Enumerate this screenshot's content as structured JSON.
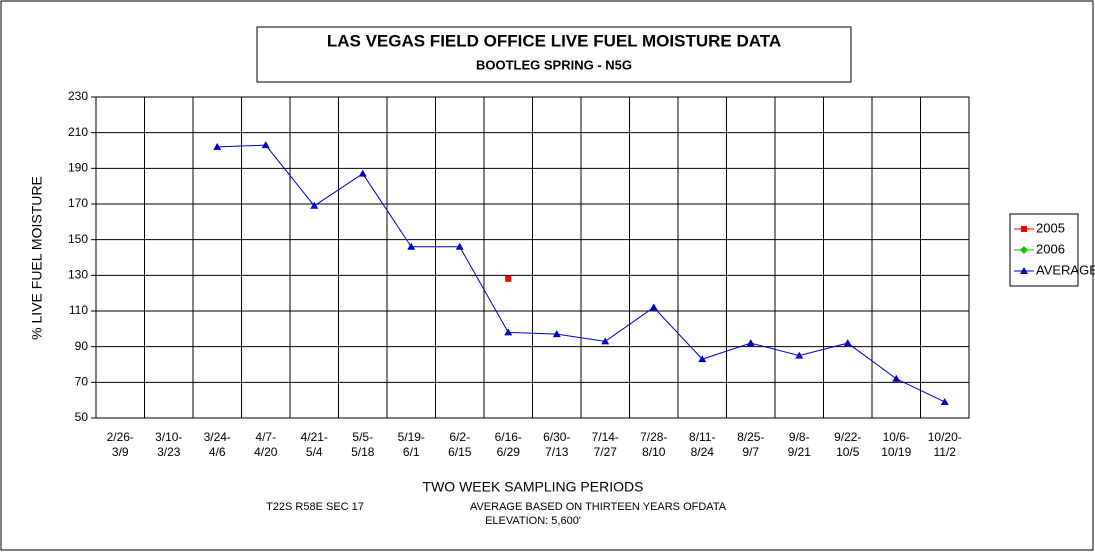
{
  "chart_data": {
    "type": "line",
    "title": "LAS VEGAS FIELD OFFICE  LIVE FUEL MOISTURE DATA",
    "subtitle": "BOOTLEG SPRING - N5G",
    "y_label": "% LIVE FUEL MOISTURE",
    "x_label": "TWO WEEK SAMPLING PERIODS",
    "notes": [
      "T22S R58E SEC 17",
      "AVERAGE BASED ON THIRTEEN YEARS OFDATA",
      "ELEVATION: 5,600'"
    ],
    "categories": [
      "2/26- 3/9",
      "3/10- 3/23",
      "3/24- 4/6",
      "4/7- 4/20",
      "4/21- 5/4",
      "5/5- 5/18",
      "5/19- 6/1",
      "6/2- 6/15",
      "6/16- 6/29",
      "6/30- 7/13",
      "7/14- 7/27",
      "7/28- 8/10",
      "8/11- 8/24",
      "8/25- 9/7",
      "9/8- 9/21",
      "9/22- 10/5",
      "10/6- 10/19",
      "10/20- 11/2"
    ],
    "series": [
      {
        "name": "2005",
        "color": "#ff0000",
        "marker": "square",
        "values": [
          null,
          null,
          null,
          null,
          null,
          null,
          null,
          null,
          128,
          null,
          null,
          null,
          null,
          null,
          null,
          null,
          null,
          null
        ]
      },
      {
        "name": "2006",
        "color": "#00cc00",
        "marker": "diamond",
        "values": [
          null,
          null,
          null,
          null,
          null,
          null,
          null,
          null,
          null,
          null,
          null,
          null,
          null,
          null,
          null,
          null,
          null,
          null
        ]
      },
      {
        "name": "AVERAGE",
        "color": "#0000cc",
        "marker": "triangle",
        "values": [
          null,
          null,
          202,
          203,
          169,
          187,
          146,
          146,
          98,
          97,
          93,
          112,
          83,
          92,
          85,
          92,
          72,
          59
        ]
      }
    ],
    "ylim": [
      50,
      230
    ],
    "yticks": [
      50,
      70,
      90,
      110,
      130,
      150,
      170,
      190,
      210,
      230
    ],
    "grid": true,
    "legend": "right"
  }
}
